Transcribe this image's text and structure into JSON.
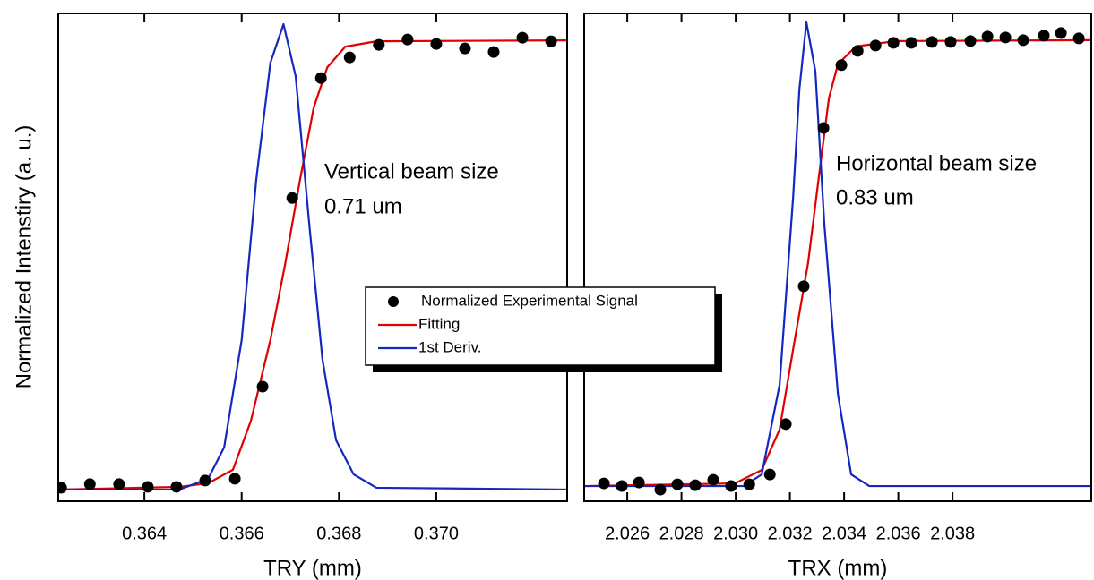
{
  "chart_data": [
    {
      "type": "scatter-line",
      "xlabel": "TRY (mm)",
      "ylabel": "Normalized Intenstiry (a. u.)",
      "annotations": [
        "Vertical beam size",
        "0.71 um"
      ],
      "xlim": [
        0.36223,
        0.37269
      ],
      "ylim": [
        -0.026,
        1.06
      ],
      "xticks": [
        0.364,
        0.366,
        0.368,
        {
          "value": 0.37,
          "label": "0.370"
        }
      ],
      "legend": true,
      "series": [
        {
          "name": "Normalized Experimental Signal",
          "color": "#000000",
          "mode": "markers",
          "x": [
            0.36229,
            0.36288,
            0.36348,
            0.36407,
            0.36466,
            0.36525,
            0.36586,
            0.36643,
            0.36704,
            0.36763,
            0.36822,
            0.36882,
            0.36941,
            0.37,
            0.37059,
            0.37118,
            0.37177,
            0.37236
          ],
          "values": [
            0.004,
            0.012,
            0.012,
            0.006,
            0.006,
            0.02,
            0.024,
            0.229,
            0.649,
            0.916,
            0.962,
            0.99,
            1.002,
            0.992,
            0.982,
            0.974,
            1.006,
            0.998
          ]
        },
        {
          "name": "Fitting",
          "color": "#e00000",
          "mode": "line",
          "x": [
            0.36223,
            0.36472,
            0.36531,
            0.36582,
            0.36619,
            0.36659,
            0.36689,
            0.3672,
            0.36748,
            0.36776,
            0.36813,
            0.36877,
            0.37269
          ],
          "values": [
            0,
            0.006,
            0.014,
            0.044,
            0.153,
            0.333,
            0.5,
            0.69,
            0.85,
            0.94,
            0.986,
            0.998,
            1.0
          ]
        },
        {
          "name": "1st Deriv.",
          "color": "#1428c0",
          "mode": "line",
          "x": [
            0.36223,
            0.36472,
            0.36531,
            0.36564,
            0.366,
            0.3663,
            0.36659,
            0.36686,
            0.36711,
            0.36739,
            0.36766,
            0.36794,
            0.3683,
            0.36877,
            0.37269
          ],
          "values": [
            0,
            0,
            0.024,
            0.094,
            0.333,
            0.69,
            0.95,
            1.036,
            0.92,
            0.59,
            0.29,
            0.11,
            0.034,
            0.004,
            0
          ]
        }
      ]
    },
    {
      "type": "scatter-line",
      "xlabel": "TRX (mm)",
      "annotations": [
        "Horizontal beam size",
        "0.83 um"
      ],
      "xlim": [
        2.02441,
        2.04312
      ],
      "ylim": [
        -0.034,
        1.06
      ],
      "xticks": [
        2.026,
        2.028,
        {
          "value": 2.03,
          "label": "2.030"
        },
        2.032,
        2.034,
        2.036,
        2.038
      ],
      "series": [
        {
          "color": "#000000",
          "mode": "markers",
          "x": [
            2.02514,
            2.0258,
            2.02643,
            2.02722,
            2.02785,
            2.02851,
            2.02917,
            2.02983,
            2.0305,
            2.03126,
            2.03185,
            2.03251,
            2.03324,
            2.0339,
            2.0345,
            2.03516,
            2.03582,
            2.03648,
            2.03724,
            2.03793,
            2.03866,
            2.03929,
            2.03995,
            2.04061,
            2.04137,
            2.042,
            2.04266
          ],
          "values": [
            0.006,
            0,
            0.008,
            -0.008,
            0.004,
            0.002,
            0.014,
            0,
            0.004,
            0.026,
            0.139,
            0.448,
            0.803,
            0.944,
            0.976,
            0.988,
            0.994,
            0.994,
            0.996,
            0.996,
            0.998,
            1.008,
            1.006,
            1.0,
            1.01,
            1.016,
            1.004
          ]
        },
        {
          "color": "#e00000",
          "mode": "line",
          "x": [
            2.02441,
            2.02997,
            2.03096,
            2.03162,
            2.03212,
            2.03267,
            2.0331,
            2.03344,
            2.03377,
            2.03443,
            2.03592,
            2.04312
          ],
          "values": [
            0,
            0.006,
            0.036,
            0.127,
            0.307,
            0.5,
            0.709,
            0.87,
            0.946,
            0.986,
            0.998,
            1.0
          ]
        },
        {
          "color": "#1428c0",
          "mode": "line",
          "x": [
            2.02441,
            2.0303,
            2.03096,
            2.03162,
            2.03212,
            2.03235,
            2.03261,
            2.03294,
            2.03327,
            2.03377,
            2.03426,
            2.03493,
            2.04312
          ],
          "values": [
            0,
            0,
            0.026,
            0.227,
            0.649,
            0.89,
            1.04,
            0.93,
            0.588,
            0.207,
            0.026,
            0,
            0
          ]
        }
      ]
    }
  ]
}
